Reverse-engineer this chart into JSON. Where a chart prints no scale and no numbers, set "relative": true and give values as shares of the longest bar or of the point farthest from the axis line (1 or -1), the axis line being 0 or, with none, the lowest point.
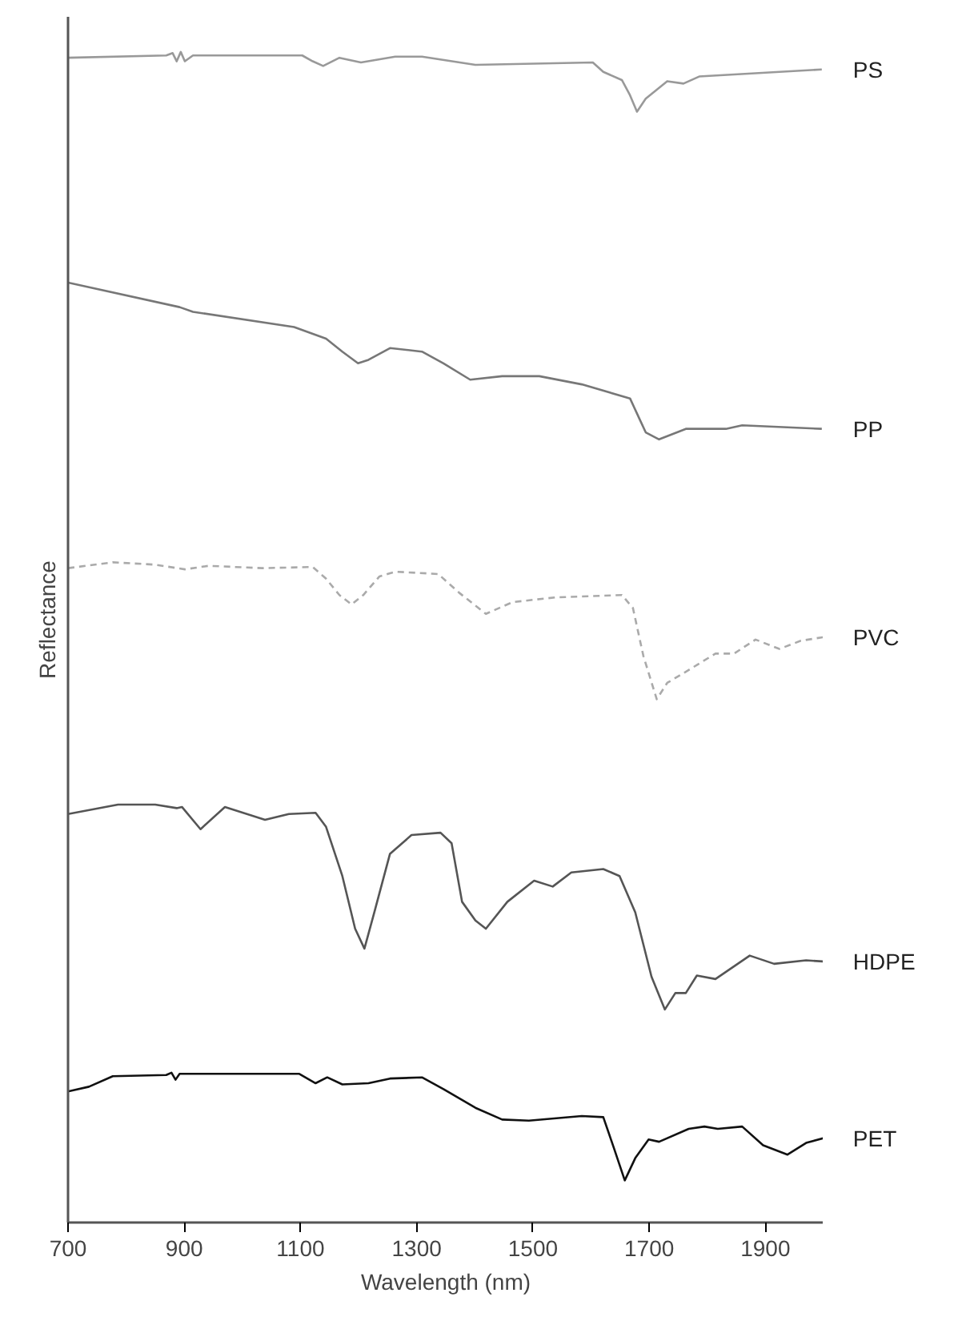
{
  "chart_data": {
    "type": "line",
    "relative": true,
    "xlabel": "Wavelength (nm)",
    "ylabel": "Reflectance",
    "xlim": [
      700,
      2000
    ],
    "xticks": [
      700,
      900,
      1100,
      1300,
      1500,
      1700,
      1900
    ],
    "grid": false,
    "series": [
      {
        "name": "PS",
        "color": "#999999",
        "line_style": "solid",
        "x": [
          700,
          869,
          880,
          887,
          894,
          901,
          915,
          1103,
          1121,
          1139,
          1167,
          1204,
          1263,
          1309,
          1401,
          1603,
          1621,
          1653,
          1667,
          1679,
          1694,
          1731,
          1759,
          1786,
          1997
        ],
        "values": [
          0.995,
          0.997,
          0.999,
          0.992,
          1,
          0.992,
          0.997,
          0.997,
          0.992,
          0.988,
          0.995,
          0.991,
          0.996,
          0.996,
          0.989,
          0.991,
          0.983,
          0.976,
          0.963,
          0.949,
          0.96,
          0.975,
          0.973,
          0.979,
          0.985
        ]
      },
      {
        "name": "PP",
        "color": "#777777",
        "line_style": "solid",
        "x": [
          700,
          892,
          915,
          1089,
          1144,
          1172,
          1199,
          1217,
          1254,
          1309,
          1346,
          1392,
          1447,
          1511,
          1584,
          1667,
          1681,
          1694,
          1717,
          1763,
          1832,
          1860,
          1997
        ],
        "values": [
          0.803,
          0.782,
          0.778,
          0.765,
          0.755,
          0.744,
          0.734,
          0.737,
          0.747,
          0.744,
          0.734,
          0.72,
          0.723,
          0.723,
          0.716,
          0.704,
          0.689,
          0.675,
          0.669,
          0.678,
          0.678,
          0.681,
          0.678
        ]
      },
      {
        "name": "PVC",
        "color": "#aaaaaa",
        "line_style": "dashed",
        "x": [
          700,
          777,
          850,
          901,
          942,
          1034,
          1121,
          1144,
          1167,
          1188,
          1208,
          1236,
          1263,
          1337,
          1373,
          1419,
          1465,
          1538,
          1653,
          1672,
          1690,
          1713,
          1731,
          1768,
          1814,
          1846,
          1883,
          1924,
          1961,
          1999
        ],
        "values": [
          0.559,
          0.564,
          0.562,
          0.558,
          0.561,
          0.559,
          0.56,
          0.55,
          0.536,
          0.528,
          0.536,
          0.552,
          0.556,
          0.554,
          0.538,
          0.52,
          0.53,
          0.534,
          0.536,
          0.525,
          0.484,
          0.447,
          0.461,
          0.472,
          0.486,
          0.486,
          0.498,
          0.49,
          0.497,
          0.5
        ]
      },
      {
        "name": "HDPE",
        "color": "#555555",
        "line_style": "solid",
        "x": [
          700,
          786,
          850,
          887,
          896,
          928,
          970,
          1039,
          1080,
          1126,
          1144,
          1172,
          1194,
          1210,
          1227,
          1254,
          1291,
          1341,
          1360,
          1378,
          1401,
          1419,
          1456,
          1502,
          1534,
          1566,
          1621,
          1649,
          1676,
          1704,
          1727,
          1745,
          1763,
          1782,
          1814,
          1873,
          1915,
          1970,
          1999
        ],
        "values": [
          0.349,
          0.357,
          0.357,
          0.354,
          0.355,
          0.336,
          0.355,
          0.344,
          0.349,
          0.35,
          0.338,
          0.296,
          0.251,
          0.234,
          0.265,
          0.315,
          0.331,
          0.333,
          0.324,
          0.274,
          0.258,
          0.251,
          0.274,
          0.292,
          0.287,
          0.299,
          0.302,
          0.296,
          0.265,
          0.21,
          0.182,
          0.196,
          0.196,
          0.211,
          0.208,
          0.228,
          0.221,
          0.224,
          0.223
        ]
      },
      {
        "name": "PET",
        "color": "#111111",
        "line_style": "solid",
        "x": [
          700,
          736,
          777,
          869,
          878,
          885,
          892,
          1098,
          1126,
          1146,
          1172,
          1217,
          1254,
          1309,
          1346,
          1401,
          1447,
          1493,
          1584,
          1621,
          1639,
          1658,
          1676,
          1699,
          1717,
          1768,
          1795,
          1818,
          1860,
          1896,
          1938,
          1970,
          1999
        ],
        "values": [
          0.112,
          0.116,
          0.125,
          0.126,
          0.128,
          0.122,
          0.127,
          0.127,
          0.119,
          0.124,
          0.118,
          0.119,
          0.123,
          0.124,
          0.114,
          0.098,
          0.088,
          0.087,
          0.091,
          0.09,
          0.064,
          0.036,
          0.055,
          0.071,
          0.069,
          0.08,
          0.082,
          0.08,
          0.082,
          0.066,
          0.058,
          0.068,
          0.072
        ]
      }
    ]
  }
}
